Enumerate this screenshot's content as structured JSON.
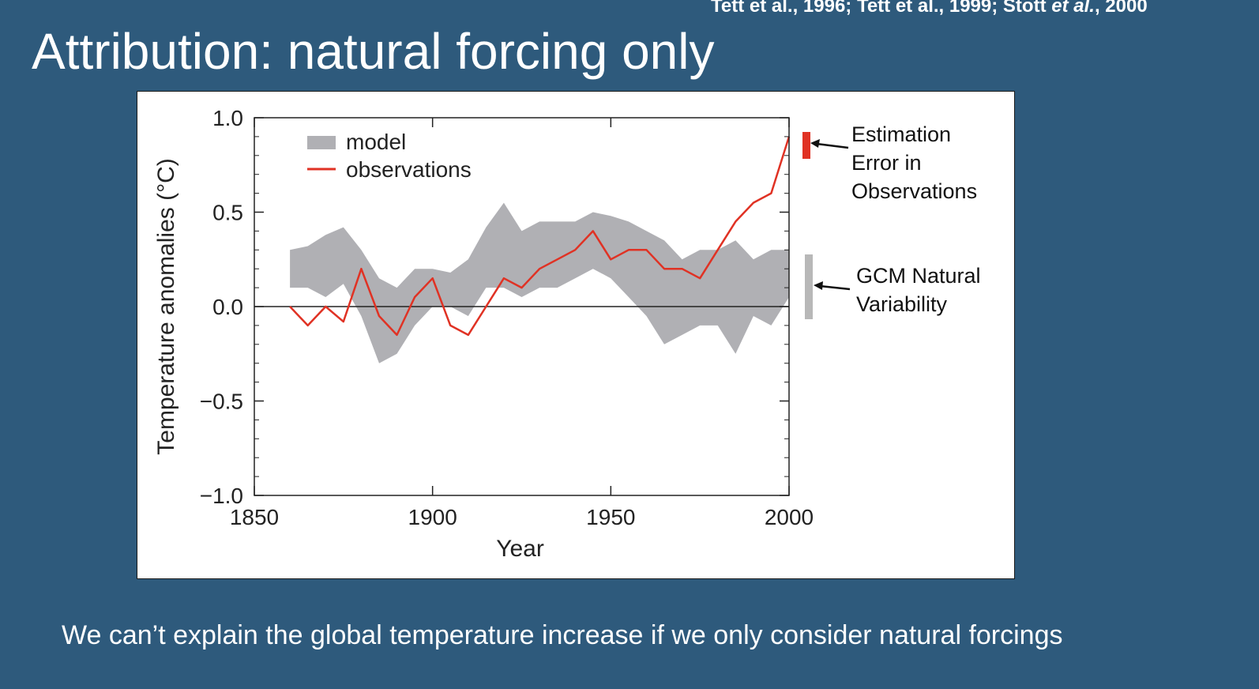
{
  "citation": {
    "part1": "Tett et al., 1996; Tett et al., 1999; Stott ",
    "italic": "et al.",
    "part2": ", 2000"
  },
  "title": "Attribution: natural forcing only",
  "caption": "We can’t explain the global temperature increase if we only consider natural forcings",
  "colors": {
    "background": "#2e5a7c",
    "model": "#b0b0b4",
    "observations": "#e03224",
    "estimation_bar": "#e03224",
    "gcm_bar": "#b8b8b8"
  },
  "chart_data": {
    "type": "line",
    "xlabel": "Year",
    "ylabel": "Temperature anomalies (°C)",
    "xlim": [
      1850,
      2000
    ],
    "ylim": [
      -1.0,
      1.0
    ],
    "x_ticks": [
      "1850",
      "1900",
      "1950",
      "2000"
    ],
    "y_ticks": [
      "1.0",
      "0.5",
      "0.0",
      "−0.5",
      "−1.0"
    ],
    "legend": {
      "placement": "top-left",
      "model": "model",
      "observations": "observations"
    },
    "x": [
      1860,
      1865,
      1870,
      1875,
      1880,
      1885,
      1890,
      1895,
      1900,
      1905,
      1910,
      1915,
      1920,
      1925,
      1930,
      1935,
      1940,
      1945,
      1950,
      1955,
      1960,
      1965,
      1970,
      1975,
      1980,
      1985,
      1990,
      1995,
      2000
    ],
    "series": [
      {
        "name": "model",
        "kind": "band",
        "lower": [
          0.1,
          0.1,
          0.05,
          0.12,
          -0.05,
          -0.3,
          -0.25,
          -0.1,
          0.0,
          0.0,
          -0.05,
          0.1,
          0.1,
          0.05,
          0.1,
          0.1,
          0.15,
          0.2,
          0.15,
          0.05,
          -0.05,
          -0.2,
          -0.15,
          -0.1,
          -0.1,
          -0.25,
          -0.05,
          -0.1,
          0.05
        ],
        "upper": [
          0.3,
          0.32,
          0.38,
          0.42,
          0.3,
          0.15,
          0.1,
          0.2,
          0.2,
          0.18,
          0.25,
          0.42,
          0.55,
          0.4,
          0.45,
          0.45,
          0.45,
          0.5,
          0.48,
          0.45,
          0.4,
          0.35,
          0.25,
          0.3,
          0.3,
          0.35,
          0.25,
          0.3,
          0.3
        ]
      },
      {
        "name": "observations",
        "kind": "line",
        "values": [
          0.0,
          -0.1,
          0.0,
          -0.08,
          0.2,
          -0.05,
          -0.15,
          0.05,
          0.15,
          -0.1,
          -0.15,
          0.0,
          0.15,
          0.1,
          0.2,
          0.25,
          0.3,
          0.4,
          0.25,
          0.3,
          0.3,
          0.2,
          0.2,
          0.15,
          0.3,
          0.45,
          0.55,
          0.6,
          0.9
        ]
      }
    ],
    "annotations": [
      {
        "id": "estimation",
        "lines": [
          "Estimation",
          "Error in",
          "Observations"
        ]
      },
      {
        "id": "gcm",
        "lines": [
          "GCM Natural",
          "Variability"
        ]
      }
    ]
  }
}
